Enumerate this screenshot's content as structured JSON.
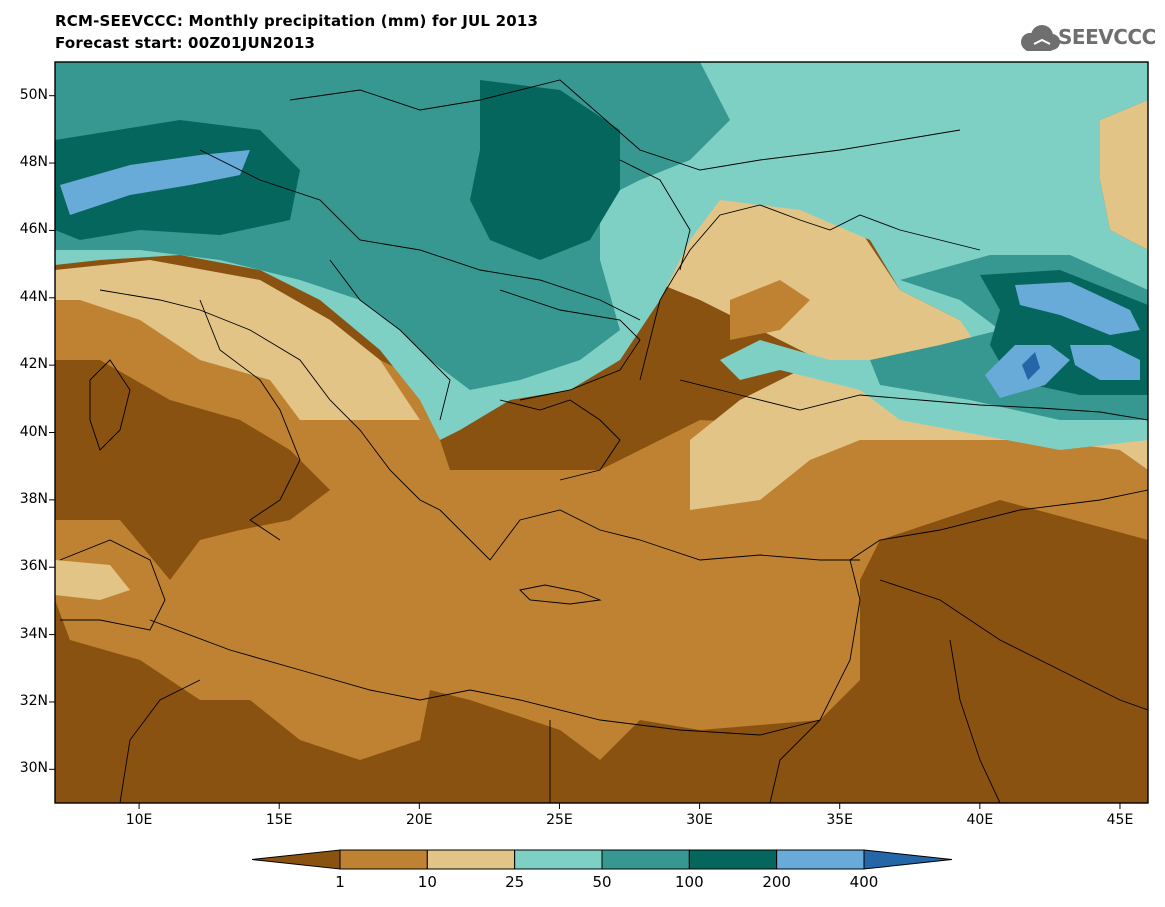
{
  "header": {
    "title_line1": "RCM-SEEVCCC: Monthly precipitation (mm) for JUL 2013",
    "title_line2": "Forecast start: 00Z01JUN2013",
    "logo_text": "SEEVCCC",
    "logo_icon": "cloud-icon"
  },
  "map": {
    "lat_labels": [
      "50N",
      "48N",
      "46N",
      "44N",
      "42N",
      "40N",
      "38N",
      "36N",
      "34N",
      "32N",
      "30N"
    ],
    "lon_labels": [
      "10E",
      "15E",
      "20E",
      "25E",
      "30E",
      "35E",
      "40E",
      "45E"
    ],
    "lat_values": [
      50,
      48,
      46,
      44,
      42,
      40,
      38,
      36,
      34,
      32,
      30
    ],
    "lon_values": [
      10,
      15,
      20,
      25,
      30,
      35,
      40,
      45
    ],
    "lon_range": [
      7,
      46
    ],
    "lat_range": [
      29,
      51
    ]
  },
  "colorbar": {
    "labels": [
      "1",
      "10",
      "25",
      "50",
      "100",
      "200",
      "400"
    ],
    "colors": [
      "#8a5210",
      "#bf8232",
      "#e3c487",
      "#7fd0c4",
      "#369890",
      "#04665c",
      "#68aad8",
      "#2566a8"
    ],
    "units": "mm"
  }
}
